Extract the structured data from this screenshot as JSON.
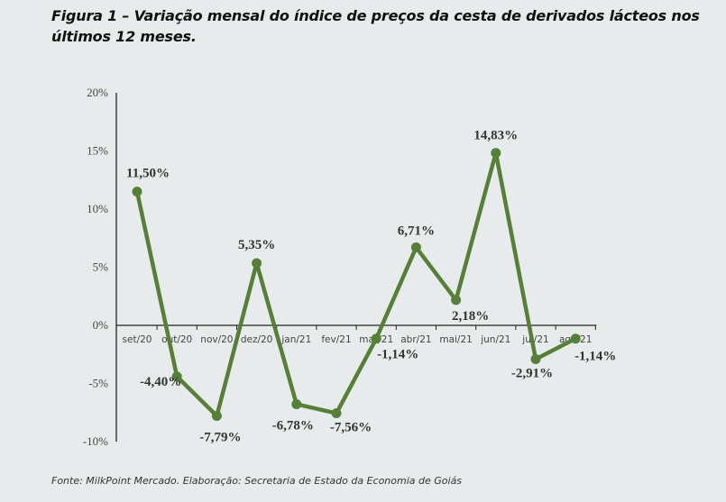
{
  "title": "Figura 1 – Variação mensal do índice de preços da cesta de derivados lácteos nos últimos 12 meses.",
  "source": "Fonte: MilkPoint Mercado. Elaboração: Secretaria de Estado da Economia de Goiás",
  "chart_data": {
    "type": "line",
    "title": "Figura 1 – Variação mensal do índice de preços da cesta de derivados lácteos nos últimos 12 meses.",
    "categories": [
      "set/20",
      "out/20",
      "nov/20",
      "dez/20",
      "jan/21",
      "fev/21",
      "mar/21",
      "abr/21",
      "mai/21",
      "jun/21",
      "jul/21",
      "ago/21"
    ],
    "values": [
      11.5,
      -4.4,
      -7.79,
      5.35,
      -6.78,
      -7.56,
      -1.14,
      6.71,
      2.18,
      14.83,
      -2.91,
      -1.14
    ],
    "data_labels": [
      "11,50%",
      "-4,40%",
      "-7,79%",
      "5,35%",
      "-6,78%",
      "-7,56%",
      "-1,14%",
      "6,71%",
      "2,18%",
      "14,83%",
      "-2,91%",
      "-1,14%"
    ],
    "ylim": [
      -10,
      20
    ],
    "yticks": [
      20,
      15,
      10,
      5,
      0,
      -5,
      -10
    ],
    "ytick_labels": [
      "20%",
      "15%",
      "10%",
      "5%",
      "0%",
      "-5%",
      "-10%"
    ],
    "grid": false,
    "legend": "none",
    "line_color": "#56803a",
    "xlabel": "",
    "ylabel": ""
  }
}
